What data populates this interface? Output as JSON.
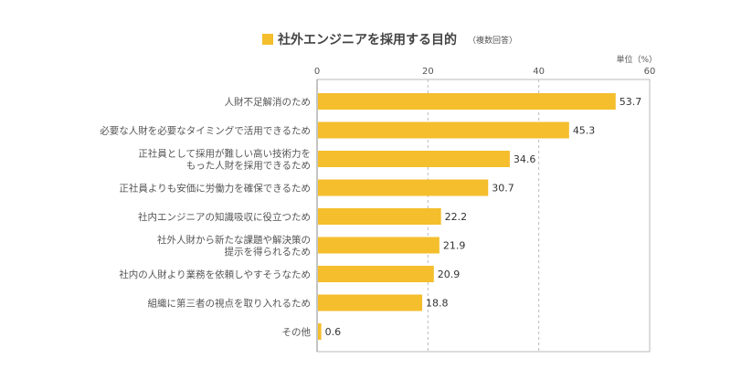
{
  "chart_data": {
    "type": "bar",
    "orientation": "horizontal",
    "title": "社外エンジニアを採用する目的",
    "subtitle": "（複数回答）",
    "unit_label": "単位（%）",
    "xlim": [
      0,
      60
    ],
    "ticks": [
      0,
      20,
      40,
      60
    ],
    "grid": true,
    "bar_color": "#F4BE2C",
    "categories": [
      [
        "人財不足解消のため"
      ],
      [
        "必要な人財を必要なタイミングで活用できるため"
      ],
      [
        "正社員として採用が難しい高い技術力を",
        "もった人財を採用できるため"
      ],
      [
        "正社員よりも安価に労働力を確保できるため"
      ],
      [
        "社内エンジニアの知識吸収に役立つため"
      ],
      [
        "社外人財から新たな課題や解決策の",
        "提示を得られるため"
      ],
      [
        "社内の人財より業務を依頼しやすそうなため"
      ],
      [
        "組織に第三者の視点を取り入れるため"
      ],
      [
        "その他"
      ]
    ],
    "values": [
      53.7,
      45.3,
      34.6,
      30.7,
      22.2,
      21.9,
      20.9,
      18.8,
      0.6
    ]
  }
}
